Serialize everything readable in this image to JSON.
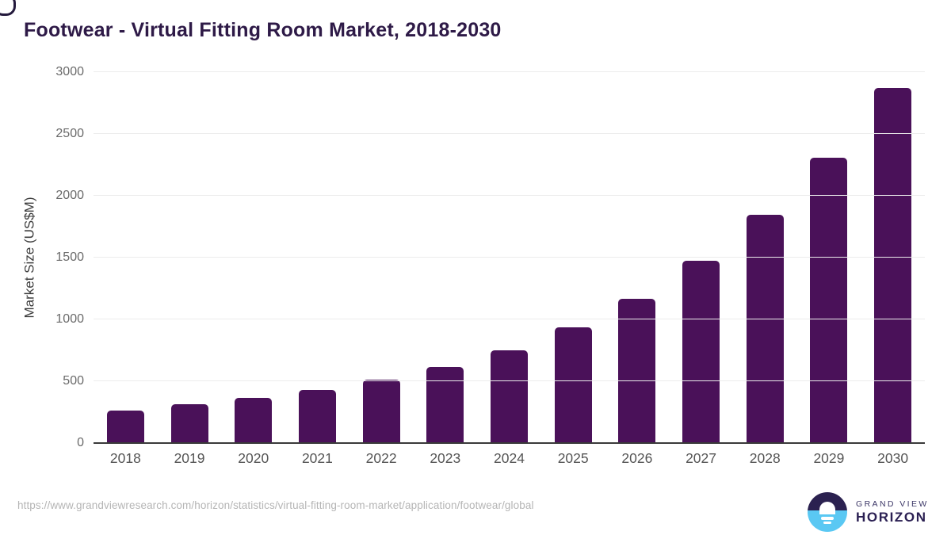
{
  "page": {
    "title": "Footwear - Virtual Fitting Room Market, 2018-2030"
  },
  "chart_data": {
    "type": "bar",
    "title": "Footwear - Virtual Fitting Room Market, 2018-2030",
    "categories": [
      "2018",
      "2019",
      "2020",
      "2021",
      "2022",
      "2023",
      "2024",
      "2025",
      "2026",
      "2027",
      "2028",
      "2029",
      "2030"
    ],
    "values": [
      260,
      315,
      365,
      430,
      515,
      615,
      750,
      935,
      1170,
      1475,
      1845,
      2310,
      2870
    ],
    "xlabel": "",
    "ylabel": "Market Size (US$M)",
    "units": "US$M",
    "ylim": [
      0,
      3000
    ],
    "yticks": [
      0,
      500,
      1000,
      1500,
      2000,
      2500,
      3000
    ],
    "grid": "horizontal",
    "legend": "none",
    "bar_color": "#4a1159"
  },
  "footer": {
    "source_url": "https://www.grandviewresearch.com/horizon/statistics/virtual-fitting-room-market/application/footwear/global",
    "logo_line1": "GRAND VIEW",
    "logo_line2": "HORIZON"
  },
  "colors": {
    "bar": "#4a1159",
    "title_text": "#2e1a47",
    "axis_line": "#3a3a3a",
    "gridline": "#ececec",
    "y_tick_label": "#6a6a6a",
    "x_tick_label": "#555555",
    "url_text": "#b5b5b5",
    "logo_dark_half": "#2b2150",
    "logo_blue_half": "#5ac8f3"
  }
}
